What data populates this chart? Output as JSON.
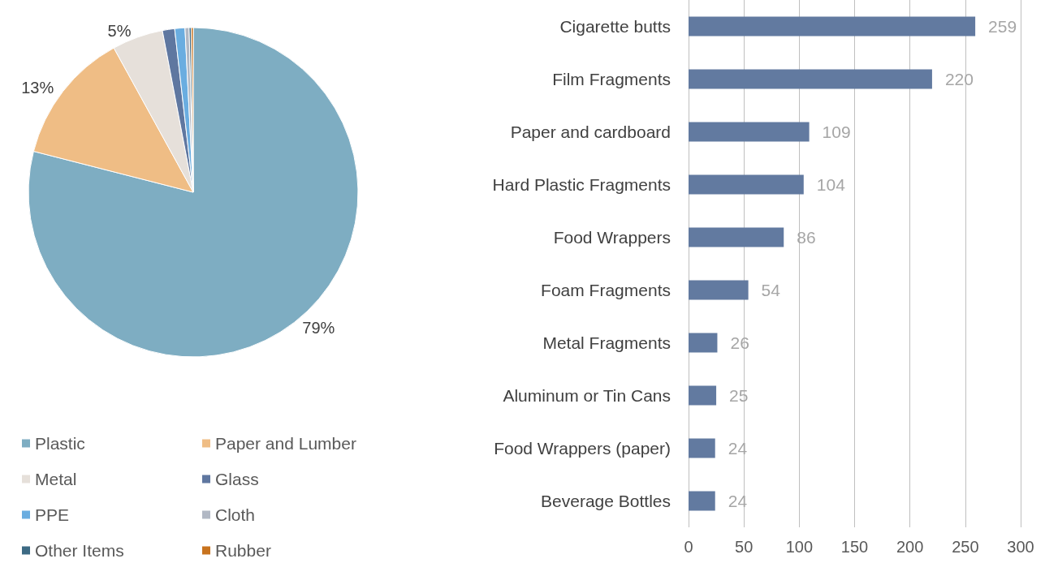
{
  "chart_data": [
    {
      "type": "pie",
      "categories": [
        "Plastic",
        "Paper and Lumber",
        "Metal",
        "Glass",
        "PPE",
        "Cloth",
        "Other Items",
        "Rubber"
      ],
      "values": [
        79,
        13,
        5,
        1.2,
        1,
        0.4,
        0.2,
        0.2
      ],
      "colors": [
        "#7eadc2",
        "#efbd85",
        "#e6e0da",
        "#5f77a0",
        "#6aade0",
        "#b1b8c4",
        "#3d6a84",
        "#c8731e"
      ],
      "value_labels": [
        "79%",
        "13%",
        "5%",
        null,
        null,
        null,
        null,
        null
      ],
      "legend": "bottom"
    },
    {
      "type": "bar",
      "orientation": "horizontal",
      "categories": [
        "Cigarette butts",
        "Film Fragments",
        "Paper and cardboard",
        "Hard Plastic Fragments",
        "Food Wrappers",
        "Foam Fragments",
        "Metal Fragments",
        "Aluminum or Tin Cans",
        "Food Wrappers (paper)",
        "Beverage Bottles"
      ],
      "values": [
        259,
        220,
        109,
        104,
        86,
        54,
        26,
        25,
        24,
        24
      ],
      "color": "#627aa0",
      "xlim": [
        0,
        300
      ],
      "xticks": [
        0,
        50,
        100,
        150,
        200,
        250,
        300
      ],
      "grid": "x",
      "data_labels": true
    }
  ]
}
